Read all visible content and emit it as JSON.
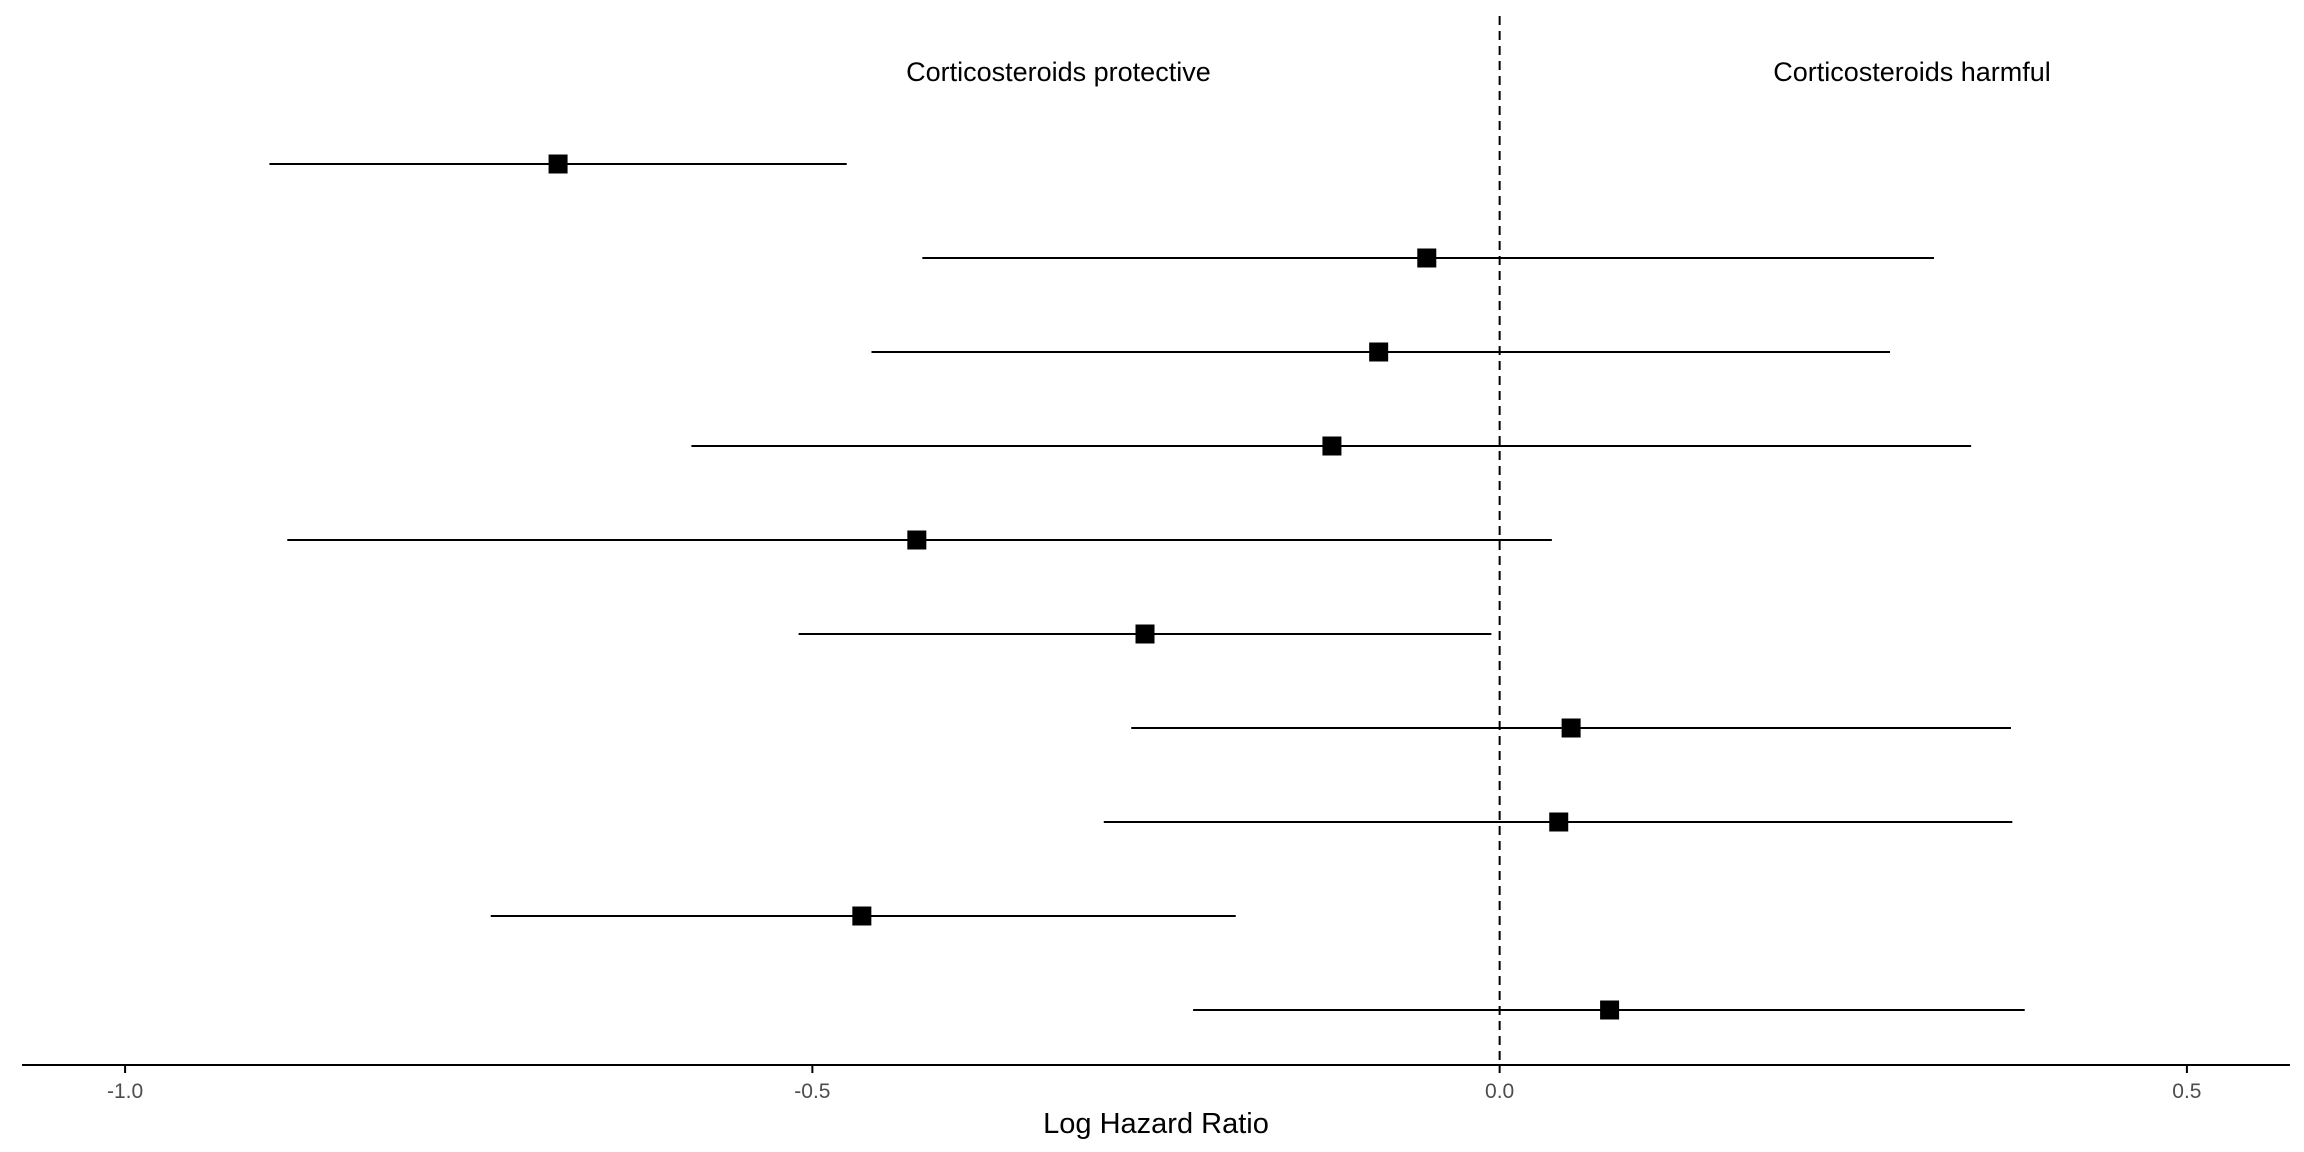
{
  "chart_data": {
    "type": "forest",
    "xlabel": "Log Hazard Ratio",
    "xlim": [
      -1.075,
      0.575
    ],
    "xticks": [
      -1.0,
      -0.5,
      0.0,
      0.5
    ],
    "xtick_labels": [
      "-1.0",
      "-0.5",
      "0.0",
      "0.5"
    ],
    "reference_line": 0.0,
    "annotations": {
      "left": "Corticosteroids protective",
      "right": "Corticosteroids harmful"
    },
    "estimates": [
      {
        "estimate": -0.685,
        "lower": -0.895,
        "upper": -0.475
      },
      {
        "estimate": -0.053,
        "lower": -0.42,
        "upper": 0.316
      },
      {
        "estimate": -0.088,
        "lower": -0.457,
        "upper": 0.284
      },
      {
        "estimate": -0.122,
        "lower": -0.588,
        "upper": 0.343
      },
      {
        "estimate": -0.424,
        "lower": -0.882,
        "upper": 0.038
      },
      {
        "estimate": -0.258,
        "lower": -0.51,
        "upper": -0.006
      },
      {
        "estimate": 0.052,
        "lower": -0.268,
        "upper": 0.372
      },
      {
        "estimate": 0.043,
        "lower": -0.288,
        "upper": 0.373
      },
      {
        "estimate": -0.464,
        "lower": -0.734,
        "upper": -0.192
      },
      {
        "estimate": 0.08,
        "lower": -0.223,
        "upper": 0.382
      }
    ],
    "colors": {
      "marks": "#000000",
      "axis": "#000000",
      "tick_labels": "#4d4d4d"
    },
    "grid": false,
    "legend": "none"
  }
}
